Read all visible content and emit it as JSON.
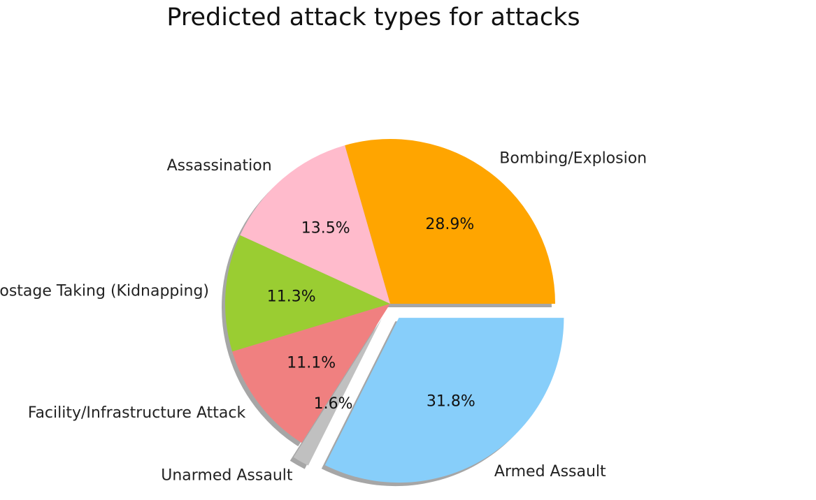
{
  "chart_data": {
    "type": "pie",
    "title": "Predicted attack types for attacks",
    "slices": [
      {
        "label": "Bombing/Explosion",
        "value": 28.9,
        "pct_label": "28.9%",
        "color": "#ffa500",
        "explode": false
      },
      {
        "label": "Assassination",
        "value": 13.5,
        "pct_label": "13.5%",
        "color": "#ffbbcc",
        "explode": false
      },
      {
        "label": "Hostage Taking (Kidnapping)",
        "value": 11.3,
        "pct_label": "11.3%",
        "color": "#9acd32",
        "explode": false
      },
      {
        "label": "Facility/Infrastructure Attack",
        "value": 11.1,
        "pct_label": "11.1%",
        "color": "#f08080",
        "explode": false
      },
      {
        "label": "Unarmed Assault",
        "value": 1.6,
        "pct_label": "1.6%",
        "color": "#c0c0c0",
        "explode": true
      },
      {
        "label": "Armed Assault",
        "value": 31.8,
        "pct_label": "31.8%",
        "color": "#87cefa",
        "explode": true
      }
    ],
    "start_angle_deg": 0,
    "direction": "counterclockwise",
    "shadow": true
  }
}
